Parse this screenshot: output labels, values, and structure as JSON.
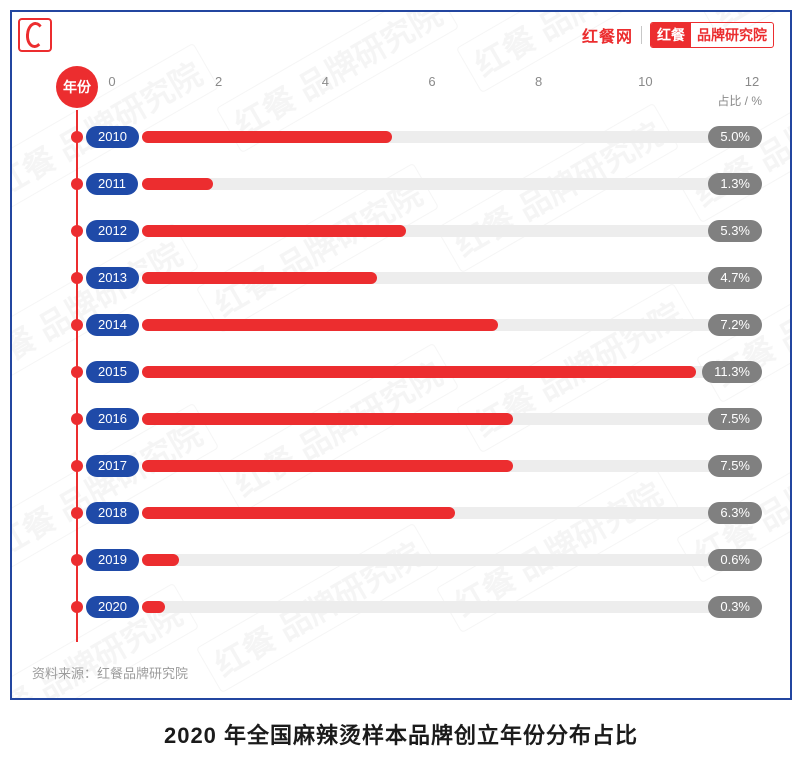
{
  "brand": {
    "left": "红餐网",
    "right_a": "红餐",
    "right_b": "品牌研究院"
  },
  "watermark_text": "红餐 品牌研究院",
  "chart": {
    "type": "bar",
    "axis_label": "年份",
    "x_unit": "占比 / %",
    "x_min": 0,
    "x_max": 12,
    "x_tick_step": 2,
    "x_ticks": [
      0,
      2,
      4,
      6,
      8,
      10,
      12
    ],
    "bar_color": "#ec2d2f",
    "track_color": "#ededed",
    "year_pill_bg": "#1f4aa8",
    "pct_pill_bg": "#808080",
    "pill_text_color": "#ffffff",
    "timeline_color": "#ec2d2f",
    "frame_border_color": "#2346a0",
    "background_color": "#ffffff",
    "tick_text_color": "#8a8a8a",
    "title_fontsize": 22,
    "tick_fontsize": 13,
    "label_fontsize": 13,
    "rows": [
      {
        "year": "2010",
        "value": 5.0,
        "label": "5.0%"
      },
      {
        "year": "2011",
        "value": 1.3,
        "label": "1.3%"
      },
      {
        "year": "2012",
        "value": 5.3,
        "label": "5.3%"
      },
      {
        "year": "2013",
        "value": 4.7,
        "label": "4.7%"
      },
      {
        "year": "2014",
        "value": 7.2,
        "label": "7.2%"
      },
      {
        "year": "2015",
        "value": 11.3,
        "label": "11.3%"
      },
      {
        "year": "2016",
        "value": 7.5,
        "label": "7.5%"
      },
      {
        "year": "2017",
        "value": 7.5,
        "label": "7.5%"
      },
      {
        "year": "2018",
        "value": 6.3,
        "label": "6.3%"
      },
      {
        "year": "2019",
        "value": 0.6,
        "label": "0.6%"
      },
      {
        "year": "2020",
        "value": 0.3,
        "label": "0.3%"
      }
    ]
  },
  "source_label": "资料来源：红餐品牌研究院",
  "caption": "2020 年全国麻辣烫样本品牌创立年份分布占比"
}
